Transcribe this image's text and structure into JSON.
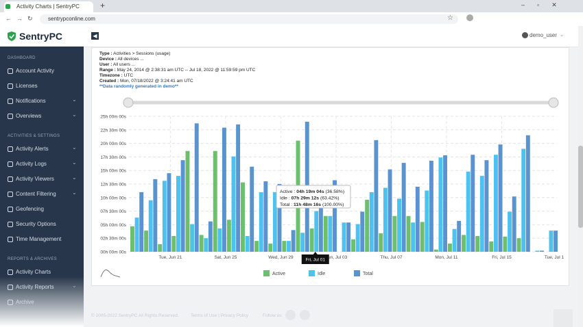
{
  "browser": {
    "tab_title": "Activity Charts | SentryPC",
    "url": "sentrypconline.com"
  },
  "app": {
    "logo": "SentryPC",
    "user": "demo_user"
  },
  "sidebar": {
    "sections": [
      {
        "title": "DASHBOARD",
        "items": [
          {
            "label": "Account Activity",
            "expandable": false
          },
          {
            "label": "Licenses",
            "expandable": false
          },
          {
            "label": "Notifications",
            "expandable": true
          },
          {
            "label": "Overviews",
            "expandable": true
          }
        ]
      },
      {
        "title": "ACTIVITIES & SETTINGS",
        "items": [
          {
            "label": "Activity Alerts",
            "expandable": true
          },
          {
            "label": "Activity Logs",
            "expandable": true
          },
          {
            "label": "Activity Viewers",
            "expandable": true
          },
          {
            "label": "Content Filtering",
            "expandable": true
          },
          {
            "label": "Geofencing",
            "expandable": false
          },
          {
            "label": "Security Options",
            "expandable": false
          },
          {
            "label": "Time Management",
            "expandable": false
          }
        ]
      },
      {
        "title": "REPORTS & ARCHIVES",
        "items": [
          {
            "label": "Activity Charts",
            "expandable": false,
            "active": true
          },
          {
            "label": "Activity Reports",
            "expandable": true
          },
          {
            "label": "Archive",
            "expandable": false
          }
        ]
      }
    ]
  },
  "report": {
    "fields": [
      {
        "label": "Type :",
        "value": "Activities > Sessions (usage)"
      },
      {
        "label": "Device :",
        "value": "All devices ..."
      },
      {
        "label": "User :",
        "value": "All users ..."
      },
      {
        "label": "Range :",
        "value": "May 24, 2014 @ 2:38:31 am UTC -- Jul 18, 2022 @ 11:59:59 pm UTC"
      },
      {
        "label": "Timezone :",
        "value": "UTC"
      },
      {
        "label": "Created :",
        "value": "Mon, 07/18/2022 @ 3:24:41 am UTC"
      }
    ],
    "note": "**Data randomly generated in demo**"
  },
  "chart_data": {
    "type": "bar",
    "categories": [
      null,
      null,
      null,
      "Tue, Jun 21",
      null,
      null,
      null,
      "Sat, Jun 25",
      null,
      null,
      null,
      "Wed, Jun 29",
      null,
      null,
      null,
      "Sun, Jul 03",
      null,
      null,
      null,
      "Thu, Jul 07",
      null,
      null,
      null,
      "Mon, Jul 11",
      null,
      null,
      null,
      "Fri, Jul 15",
      null,
      null,
      null
    ],
    "x_end_label": "Tue, Jul 1",
    "series": [
      {
        "name": "Active",
        "color": "#6dbe6d",
        "values": [
          4.7,
          3.9,
          1.4,
          2.9,
          18.6,
          3.1,
          18.6,
          5.9,
          12.8,
          2.0,
          1.5,
          2.0,
          20.5,
          4.3,
          6.6,
          0,
          2.3,
          9.6,
          3.4,
          6.6,
          6.6,
          5.5,
          0.4,
          1.5,
          3.1,
          2.9,
          1.9,
          2.8,
          2.5,
          0,
          0
        ]
      },
      {
        "name": "Idle",
        "color": "#4fc1ee",
        "values": [
          6.3,
          9.5,
          13.1,
          14.0,
          5.1,
          2.5,
          4.3,
          17.6,
          2.9,
          11.0,
          11.0,
          2.0,
          3.5,
          7.5,
          6.6,
          5.4,
          5.1,
          11.0,
          11.8,
          9.8,
          5.4,
          11.3,
          17.4,
          4.2,
          14.8,
          14.0,
          17.9,
          7.4,
          19.0,
          0.2,
          3.9
        ]
      },
      {
        "name": "Total",
        "color": "#5b93cf",
        "values": [
          11.0,
          13.4,
          14.5,
          16.9,
          23.7,
          5.6,
          22.9,
          23.5,
          15.7,
          13.0,
          12.5,
          4.0,
          24.0,
          11.8,
          13.2,
          5.4,
          7.4,
          20.6,
          15.2,
          16.4,
          12.0,
          16.8,
          17.8,
          5.7,
          17.9,
          16.9,
          19.8,
          10.2,
          21.5,
          0.2,
          3.9
        ]
      }
    ],
    "ylim": [
      0,
      25
    ],
    "yticks": [
      {
        "value": 0,
        "label": "00h 00m 00s"
      },
      {
        "value": 2.5,
        "label": "02h 30m 00s"
      },
      {
        "value": 5,
        "label": "05h 00m 00s"
      },
      {
        "value": 7.5,
        "label": "07h 30m 00s"
      },
      {
        "value": 10,
        "label": "10h 00m 00s"
      },
      {
        "value": 12.5,
        "label": "12h 30m 00s"
      },
      {
        "value": 15,
        "label": "15h 00m 00s"
      },
      {
        "value": 17.5,
        "label": "17h 30m 00s"
      },
      {
        "value": 20,
        "label": "20h 00m 00s"
      },
      {
        "value": 22.5,
        "label": "22h 30m 00s"
      },
      {
        "value": 25,
        "label": "25h 00m 00s"
      }
    ],
    "grid": true,
    "legend": "bottom",
    "tooltip": {
      "category": 13,
      "date": "Fri, Jul 01",
      "rows": [
        {
          "label": "Active :",
          "value": "04h 19m 04s",
          "percent": "(36.58%)"
        },
        {
          "label": "Idle :",
          "value": "07h 29m 12s",
          "percent": "(63.42%)"
        },
        {
          "label": "Total :",
          "value": "11h 48m 16s",
          "percent": "(100.00%)"
        }
      ]
    }
  },
  "footer": {
    "copyright": "© 2005-2022 SentryPC All Rights Reserved.",
    "links": "Terms of Use | Privacy Policy",
    "follow": "Follow us:"
  }
}
